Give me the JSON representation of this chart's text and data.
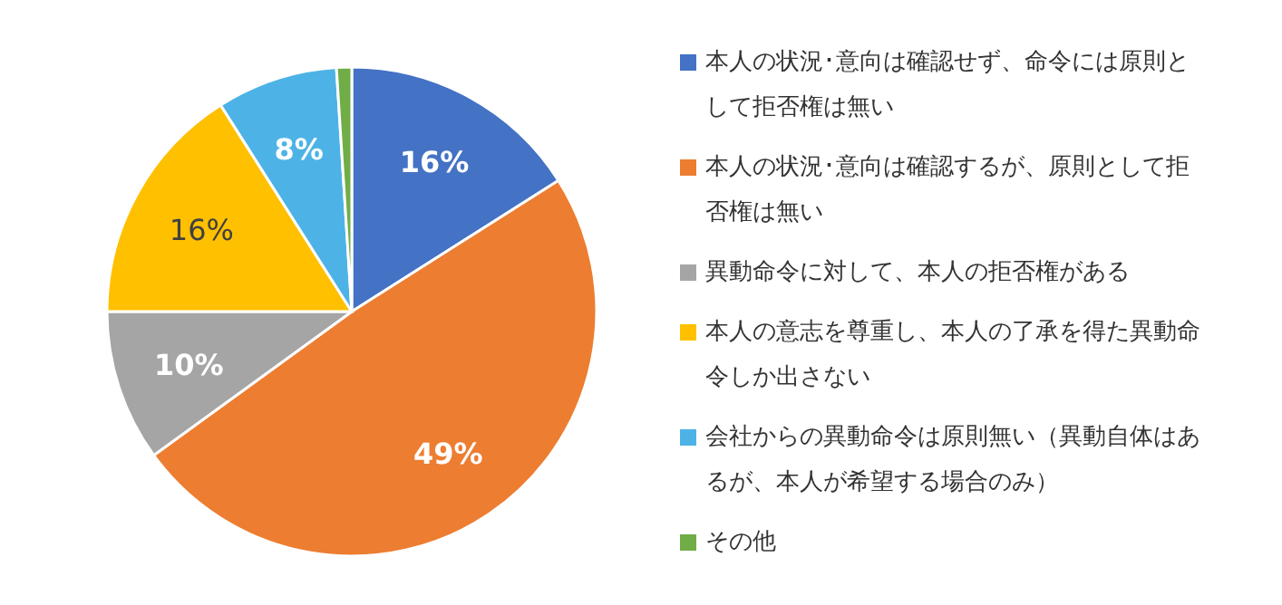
{
  "chart_data": {
    "type": "pie",
    "categories": [
      "本人の状況･意向は確認せず、命令には原則として拒否権は無い",
      "本人の状況･意向は確認するが、原則として拒否権は無い",
      "異動命令に対して、本人の拒否権がある",
      "本人の意志を尊重し、本人の了承を得た異動命令しか出さない",
      "会社からの異動命令は原則無い（異動自体はあるが、本人が希望する場合のみ）",
      "その他"
    ],
    "values": [
      16,
      49,
      10,
      16,
      8,
      1
    ],
    "colors": [
      "#4472c4",
      "#ed7d31",
      "#a5a5a5",
      "#ffc000",
      "#4db3e6",
      "#70ad47"
    ],
    "value_labels": [
      "16%",
      "49%",
      "10%",
      "16%",
      "8%",
      null
    ],
    "legend": "right"
  }
}
